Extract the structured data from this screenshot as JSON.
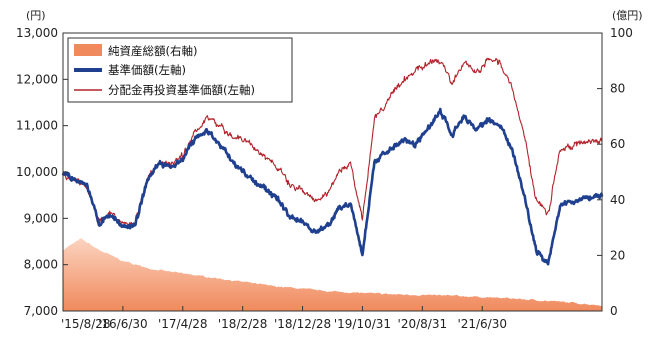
{
  "chart_data": {
    "type": "line",
    "left_axis_unit": "(円)",
    "right_axis_unit": "(億円)",
    "left_ticks": [
      "7,000",
      "8,000",
      "9,000",
      "10,000",
      "11,000",
      "12,000",
      "13,000"
    ],
    "left_tick_values": [
      7000,
      8000,
      9000,
      10000,
      11000,
      12000,
      13000
    ],
    "right_ticks": [
      "0",
      "20",
      "40",
      "60",
      "80",
      "100"
    ],
    "right_tick_values": [
      0,
      20,
      40,
      60,
      80,
      100
    ],
    "x_ticks": [
      "'15/8/28",
      "'16/6/30",
      "'17/4/28",
      "'18/2/28",
      "'18/12/28",
      "'19/10/31",
      "'20/8/31",
      "'21/6/30"
    ],
    "ylim_left": [
      7000,
      13000
    ],
    "ylim_right": [
      0,
      100
    ],
    "grid": false,
    "legend_position": "top-left",
    "colors": {
      "net_assets": "#f08a5d",
      "nav": "#1f3f8f",
      "reinvested_nav": "#b2232b"
    },
    "series": [
      {
        "name": "純資産総額(右軸)",
        "kind": "area",
        "axis": "right",
        "color": "#f08a5d",
        "x": [
          0,
          0.3,
          0.6,
          1.0,
          1.5,
          2.5,
          3.5,
          4.5,
          5.5,
          6.5,
          7.5,
          8.5,
          9.0
        ],
        "values": [
          22,
          26,
          22,
          18,
          15,
          12,
          9,
          7,
          6,
          5.5,
          4.5,
          3,
          2
        ]
      },
      {
        "name": "基準価額(左軸)",
        "kind": "line",
        "axis": "left",
        "color": "#1f3f8f",
        "x": [
          0,
          0.4,
          0.6,
          0.8,
          1.0,
          1.2,
          1.4,
          1.6,
          1.8,
          2.0,
          2.2,
          2.4,
          2.6,
          2.8,
          3.0,
          3.2,
          3.4,
          3.6,
          3.8,
          4.0,
          4.2,
          4.4,
          4.6,
          4.8,
          5.0,
          5.2,
          5.35,
          5.5,
          5.7,
          5.9,
          6.1,
          6.3,
          6.5,
          6.7,
          6.9,
          7.1,
          7.3,
          7.5,
          7.7,
          7.9,
          8.1,
          8.3,
          8.5,
          8.6,
          8.8,
          9.0
        ],
        "values": [
          9950,
          9700,
          8900,
          9100,
          8800,
          8850,
          9800,
          10200,
          10100,
          10300,
          10700,
          10900,
          10600,
          10300,
          10000,
          9800,
          9600,
          9400,
          9000,
          8950,
          8700,
          8800,
          9200,
          9300,
          8200,
          10200,
          10400,
          10500,
          10700,
          10600,
          10950,
          11300,
          10800,
          11200,
          10900,
          11150,
          11000,
          10500,
          9500,
          8300,
          8000,
          9300,
          9350,
          9400,
          9450,
          9500
        ]
      },
      {
        "name": "分配金再投資基準価額(左軸)",
        "kind": "line",
        "axis": "left",
        "color": "#b2232b",
        "x": [
          0,
          0.4,
          0.6,
          0.8,
          1.0,
          1.2,
          1.4,
          1.6,
          1.8,
          2.0,
          2.2,
          2.4,
          2.6,
          2.8,
          3.0,
          3.2,
          3.4,
          3.6,
          3.8,
          4.0,
          4.2,
          4.4,
          4.6,
          4.8,
          5.0,
          5.2,
          5.35,
          5.5,
          5.7,
          5.9,
          6.1,
          6.3,
          6.5,
          6.7,
          6.9,
          7.1,
          7.3,
          7.5,
          7.7,
          7.9,
          8.1,
          8.3,
          8.5,
          8.6,
          8.8,
          9.0
        ],
        "values": [
          9950,
          9700,
          8950,
          9150,
          8850,
          8900,
          9850,
          10250,
          10150,
          10350,
          10850,
          11200,
          11000,
          10800,
          10700,
          10500,
          10300,
          10100,
          9700,
          9600,
          9400,
          9500,
          10000,
          10200,
          9000,
          11100,
          11400,
          11700,
          12000,
          12200,
          12350,
          12400,
          11900,
          12400,
          12100,
          12450,
          12350,
          11800,
          10800,
          9400,
          9100,
          10500,
          10550,
          10600,
          10650,
          10700
        ]
      }
    ]
  }
}
